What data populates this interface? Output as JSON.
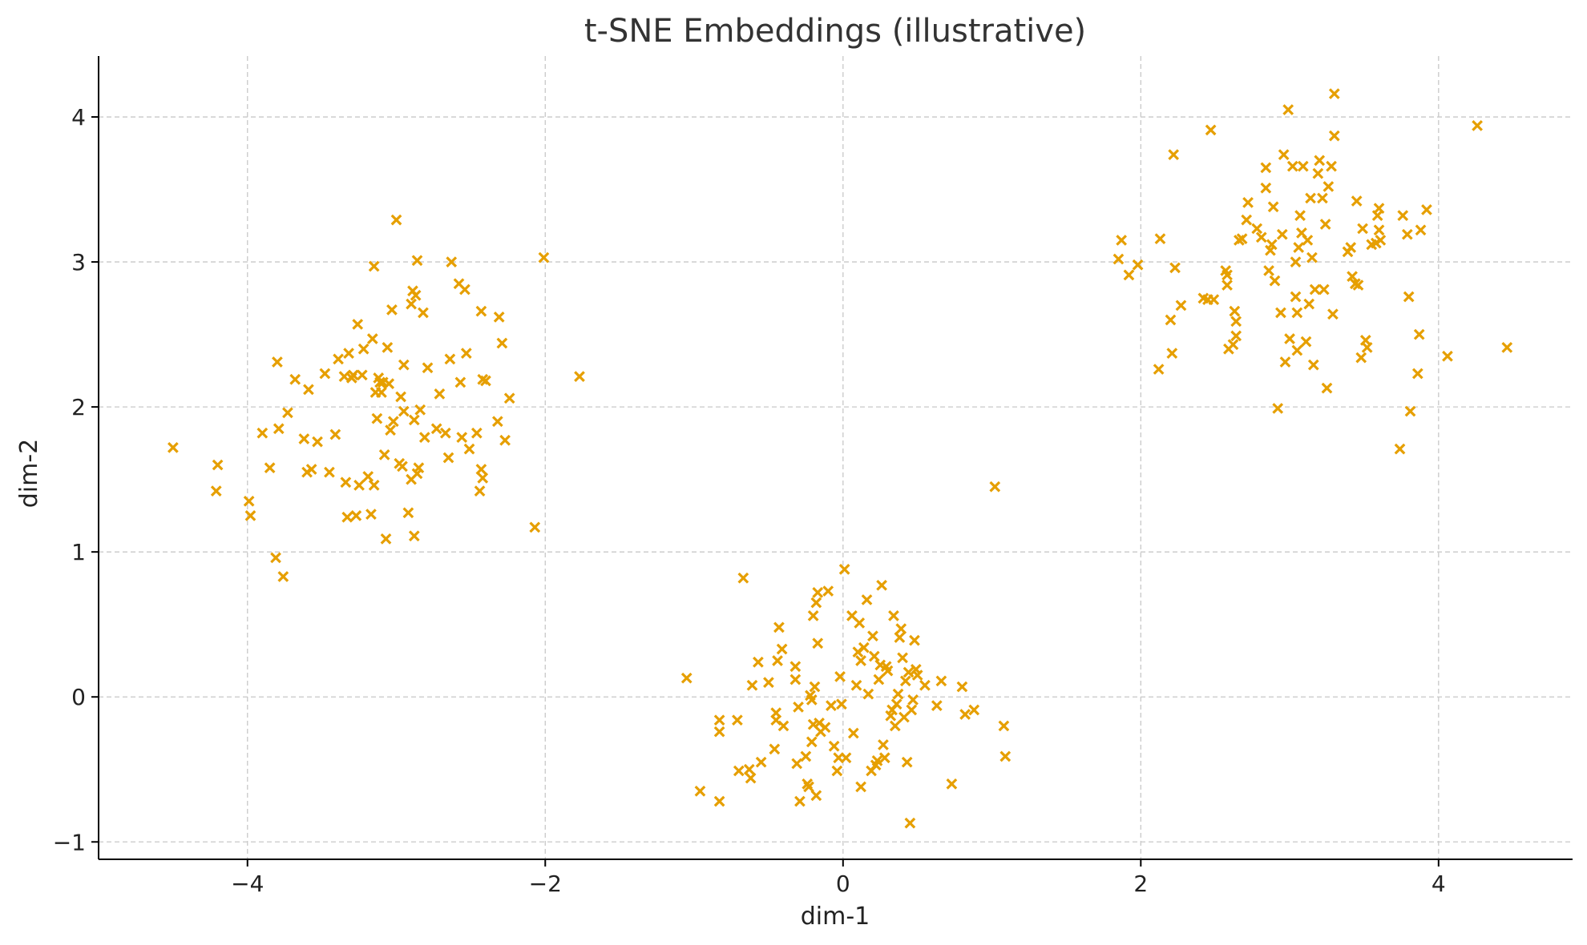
{
  "chart_data": {
    "type": "scatter",
    "title": "t-SNE Embeddings (illustrative)",
    "xlabel": "dim-1",
    "ylabel": "dim-2",
    "xlim": [
      -5.0,
      4.9
    ],
    "ylim": [
      -1.12,
      4.42
    ],
    "xticks": [
      -4,
      -2,
      0,
      2,
      4
    ],
    "yticks": [
      -1,
      0,
      1,
      2,
      3,
      4
    ],
    "grid": true,
    "marker": "x",
    "color": "#E69F00",
    "series": [
      {
        "points": [
          [
            -4.5,
            1.72
          ],
          [
            -4.2,
            1.6
          ],
          [
            -4.21,
            1.42
          ],
          [
            -3.99,
            1.35
          ],
          [
            -3.98,
            1.25
          ],
          [
            -3.9,
            1.82
          ],
          [
            -3.85,
            1.58
          ],
          [
            -3.81,
            0.96
          ],
          [
            -3.76,
            0.83
          ],
          [
            -3.8,
            2.31
          ],
          [
            -3.79,
            1.85
          ],
          [
            -3.73,
            1.96
          ],
          [
            -3.68,
            2.19
          ],
          [
            -3.62,
            1.78
          ],
          [
            -3.6,
            1.55
          ],
          [
            -3.59,
            2.12
          ],
          [
            -3.57,
            1.57
          ],
          [
            -3.53,
            1.76
          ],
          [
            -3.48,
            2.23
          ],
          [
            -3.45,
            1.55
          ],
          [
            -3.41,
            1.81
          ],
          [
            -3.39,
            2.33
          ],
          [
            -3.35,
            2.21
          ],
          [
            -3.34,
            1.48
          ],
          [
            -3.33,
            1.24
          ],
          [
            -3.32,
            2.37
          ],
          [
            -3.3,
            2.2
          ],
          [
            -3.29,
            2.22
          ],
          [
            -3.27,
            1.25
          ],
          [
            -3.26,
            2.57
          ],
          [
            -3.25,
            1.46
          ],
          [
            -3.23,
            2.22
          ],
          [
            -3.22,
            2.4
          ],
          [
            -3.19,
            1.52
          ],
          [
            -3.17,
            1.26
          ],
          [
            -3.16,
            2.47
          ],
          [
            -3.15,
            2.97
          ],
          [
            -3.15,
            1.46
          ],
          [
            -3.14,
            2.1
          ],
          [
            -3.13,
            1.92
          ],
          [
            -3.12,
            2.2
          ],
          [
            -3.11,
            2.17
          ],
          [
            -3.1,
            2.1
          ],
          [
            -3.09,
            2.17
          ],
          [
            -3.08,
            1.67
          ],
          [
            -3.07,
            1.09
          ],
          [
            -3.06,
            2.41
          ],
          [
            -3.05,
            2.16
          ],
          [
            -3.04,
            1.84
          ],
          [
            -3.03,
            2.67
          ],
          [
            -3.02,
            1.9
          ],
          [
            -3.0,
            3.29
          ],
          [
            -2.98,
            1.61
          ],
          [
            -2.97,
            2.07
          ],
          [
            -2.96,
            1.59
          ],
          [
            -2.95,
            2.29
          ],
          [
            -2.95,
            1.97
          ],
          [
            -2.92,
            1.27
          ],
          [
            -2.9,
            2.71
          ],
          [
            -2.9,
            1.5
          ],
          [
            -2.89,
            2.8
          ],
          [
            -2.88,
            1.11
          ],
          [
            -2.88,
            1.91
          ],
          [
            -2.87,
            2.77
          ],
          [
            -2.86,
            1.54
          ],
          [
            -2.86,
            3.01
          ],
          [
            -2.85,
            1.58
          ],
          [
            -2.84,
            1.98
          ],
          [
            -2.82,
            2.65
          ],
          [
            -2.81,
            1.79
          ],
          [
            -2.79,
            2.27
          ],
          [
            -2.73,
            1.85
          ],
          [
            -2.71,
            2.09
          ],
          [
            -2.67,
            1.82
          ],
          [
            -2.65,
            1.65
          ],
          [
            -2.64,
            2.33
          ],
          [
            -2.63,
            3.0
          ],
          [
            -2.58,
            2.85
          ],
          [
            -2.57,
            2.17
          ],
          [
            -2.56,
            1.79
          ],
          [
            -2.54,
            2.81
          ],
          [
            -2.53,
            2.37
          ],
          [
            -2.51,
            1.71
          ],
          [
            -2.46,
            1.82
          ],
          [
            -2.44,
            1.42
          ],
          [
            -2.43,
            1.57
          ],
          [
            -2.43,
            2.66
          ],
          [
            -2.42,
            2.19
          ],
          [
            -2.42,
            1.51
          ],
          [
            -2.4,
            2.18
          ],
          [
            -2.32,
            1.9
          ],
          [
            -2.31,
            2.62
          ],
          [
            -2.29,
            2.44
          ],
          [
            -2.27,
            1.77
          ],
          [
            -2.24,
            2.06
          ],
          [
            -2.07,
            1.17
          ],
          [
            -2.01,
            3.03
          ],
          [
            -1.77,
            2.21
          ]
        ]
      },
      {
        "points": [
          [
            -1.05,
            0.13
          ],
          [
            -0.96,
            -0.65
          ],
          [
            -0.83,
            -0.16
          ],
          [
            -0.83,
            -0.24
          ],
          [
            -0.83,
            -0.72
          ],
          [
            -0.71,
            -0.16
          ],
          [
            -0.7,
            -0.51
          ],
          [
            -0.67,
            0.82
          ],
          [
            -0.63,
            -0.5
          ],
          [
            -0.62,
            -0.56
          ],
          [
            -0.61,
            0.08
          ],
          [
            -0.57,
            0.24
          ],
          [
            -0.55,
            -0.45
          ],
          [
            -0.5,
            0.1
          ],
          [
            -0.46,
            -0.36
          ],
          [
            -0.45,
            -0.11
          ],
          [
            -0.45,
            -0.16
          ],
          [
            -0.44,
            0.25
          ],
          [
            -0.43,
            0.48
          ],
          [
            -0.41,
            0.33
          ],
          [
            -0.4,
            -0.2
          ],
          [
            -0.32,
            0.21
          ],
          [
            -0.32,
            0.12
          ],
          [
            -0.31,
            -0.46
          ],
          [
            -0.3,
            -0.07
          ],
          [
            -0.29,
            -0.72
          ],
          [
            -0.25,
            -0.41
          ],
          [
            -0.24,
            -0.6
          ],
          [
            -0.23,
            -0.62
          ],
          [
            -0.22,
            0.01
          ],
          [
            -0.21,
            -0.31
          ],
          [
            -0.21,
            -0.02
          ],
          [
            -0.2,
            0.56
          ],
          [
            -0.2,
            -0.19
          ],
          [
            -0.19,
            0.07
          ],
          [
            -0.18,
            0.65
          ],
          [
            -0.18,
            -0.68
          ],
          [
            -0.17,
            0.37
          ],
          [
            -0.17,
            0.72
          ],
          [
            -0.16,
            -0.18
          ],
          [
            -0.15,
            -0.24
          ],
          [
            -0.12,
            -0.21
          ],
          [
            -0.1,
            0.73
          ],
          [
            -0.08,
            -0.06
          ],
          [
            -0.06,
            -0.34
          ],
          [
            -0.04,
            -0.51
          ],
          [
            -0.03,
            -0.42
          ],
          [
            -0.02,
            0.14
          ],
          [
            -0.01,
            -0.05
          ],
          [
            0.01,
            0.88
          ],
          [
            0.02,
            -0.42
          ],
          [
            0.06,
            0.56
          ],
          [
            0.07,
            -0.25
          ],
          [
            0.09,
            0.08
          ],
          [
            0.1,
            0.31
          ],
          [
            0.11,
            0.51
          ],
          [
            0.12,
            -0.62
          ],
          [
            0.12,
            0.25
          ],
          [
            0.14,
            0.34
          ],
          [
            0.16,
            0.67
          ],
          [
            0.17,
            0.02
          ],
          [
            0.19,
            -0.51
          ],
          [
            0.2,
            0.42
          ],
          [
            0.21,
            0.28
          ],
          [
            0.22,
            -0.47
          ],
          [
            0.23,
            -0.44
          ],
          [
            0.24,
            0.12
          ],
          [
            0.25,
            0.22
          ],
          [
            0.26,
            0.77
          ],
          [
            0.27,
            -0.33
          ],
          [
            0.28,
            -0.42
          ],
          [
            0.29,
            0.21
          ],
          [
            0.3,
            0.18
          ],
          [
            0.32,
            -0.13
          ],
          [
            0.33,
            -0.09
          ],
          [
            0.34,
            0.56
          ],
          [
            0.35,
            -0.2
          ],
          [
            0.36,
            -0.05
          ],
          [
            0.37,
            0.02
          ],
          [
            0.38,
            0.41
          ],
          [
            0.39,
            0.47
          ],
          [
            0.4,
            0.27
          ],
          [
            0.41,
            -0.14
          ],
          [
            0.42,
            0.11
          ],
          [
            0.43,
            -0.45
          ],
          [
            0.44,
            0.17
          ],
          [
            0.45,
            -0.87
          ],
          [
            0.46,
            -0.09
          ],
          [
            0.47,
            -0.02
          ],
          [
            0.48,
            0.39
          ],
          [
            0.49,
            0.19
          ],
          [
            0.5,
            0.15
          ],
          [
            0.55,
            0.08
          ],
          [
            0.63,
            -0.06
          ],
          [
            0.66,
            0.11
          ],
          [
            0.73,
            -0.6
          ],
          [
            0.8,
            0.07
          ],
          [
            0.82,
            -0.12
          ],
          [
            0.88,
            -0.09
          ],
          [
            1.02,
            1.45
          ],
          [
            1.08,
            -0.2
          ],
          [
            1.09,
            -0.41
          ]
        ]
      },
      {
        "points": [
          [
            1.85,
            3.02
          ],
          [
            1.87,
            3.15
          ],
          [
            1.92,
            2.91
          ],
          [
            1.98,
            2.98
          ],
          [
            2.12,
            2.26
          ],
          [
            2.13,
            3.16
          ],
          [
            2.2,
            2.6
          ],
          [
            2.21,
            2.37
          ],
          [
            2.22,
            3.74
          ],
          [
            2.23,
            2.96
          ],
          [
            2.27,
            2.7
          ],
          [
            2.42,
            2.75
          ],
          [
            2.45,
            2.74
          ],
          [
            2.47,
            3.91
          ],
          [
            2.49,
            2.74
          ],
          [
            2.57,
            2.94
          ],
          [
            2.58,
            2.91
          ],
          [
            2.58,
            2.84
          ],
          [
            2.59,
            2.4
          ],
          [
            2.62,
            2.43
          ],
          [
            2.63,
            2.66
          ],
          [
            2.64,
            2.49
          ],
          [
            2.64,
            2.59
          ],
          [
            2.66,
            3.15
          ],
          [
            2.68,
            3.16
          ],
          [
            2.71,
            3.29
          ],
          [
            2.72,
            3.41
          ],
          [
            2.78,
            3.23
          ],
          [
            2.81,
            3.17
          ],
          [
            2.84,
            3.51
          ],
          [
            2.84,
            3.65
          ],
          [
            2.86,
            2.94
          ],
          [
            2.87,
            3.08
          ],
          [
            2.88,
            3.12
          ],
          [
            2.89,
            3.38
          ],
          [
            2.9,
            2.87
          ],
          [
            2.92,
            1.99
          ],
          [
            2.94,
            2.65
          ],
          [
            2.95,
            3.19
          ],
          [
            2.96,
            3.74
          ],
          [
            2.97,
            2.31
          ],
          [
            2.99,
            4.05
          ],
          [
            3.0,
            2.47
          ],
          [
            3.02,
            3.66
          ],
          [
            3.04,
            2.76
          ],
          [
            3.04,
            3.0
          ],
          [
            3.05,
            2.39
          ],
          [
            3.05,
            2.65
          ],
          [
            3.06,
            3.1
          ],
          [
            3.07,
            3.32
          ],
          [
            3.08,
            3.2
          ],
          [
            3.09,
            3.66
          ],
          [
            3.11,
            2.45
          ],
          [
            3.12,
            3.15
          ],
          [
            3.13,
            2.71
          ],
          [
            3.14,
            3.44
          ],
          [
            3.15,
            3.03
          ],
          [
            3.16,
            2.29
          ],
          [
            3.17,
            2.81
          ],
          [
            3.19,
            3.61
          ],
          [
            3.2,
            3.7
          ],
          [
            3.22,
            3.44
          ],
          [
            3.23,
            2.81
          ],
          [
            3.24,
            3.26
          ],
          [
            3.25,
            2.13
          ],
          [
            3.26,
            3.52
          ],
          [
            3.28,
            3.66
          ],
          [
            3.29,
            2.64
          ],
          [
            3.3,
            3.87
          ],
          [
            3.3,
            4.16
          ],
          [
            3.39,
            3.07
          ],
          [
            3.41,
            3.1
          ],
          [
            3.42,
            2.9
          ],
          [
            3.44,
            2.85
          ],
          [
            3.45,
            3.42
          ],
          [
            3.46,
            2.84
          ],
          [
            3.48,
            2.34
          ],
          [
            3.49,
            3.23
          ],
          [
            3.51,
            2.46
          ],
          [
            3.52,
            2.41
          ],
          [
            3.55,
            3.12
          ],
          [
            3.58,
            3.13
          ],
          [
            3.59,
            3.32
          ],
          [
            3.6,
            3.22
          ],
          [
            3.6,
            3.37
          ],
          [
            3.61,
            3.15
          ],
          [
            3.74,
            1.71
          ],
          [
            3.76,
            3.32
          ],
          [
            3.79,
            3.19
          ],
          [
            3.8,
            2.76
          ],
          [
            3.81,
            1.97
          ],
          [
            3.86,
            2.23
          ],
          [
            3.87,
            2.5
          ],
          [
            3.88,
            3.22
          ],
          [
            3.92,
            3.36
          ],
          [
            4.06,
            2.35
          ],
          [
            4.26,
            3.94
          ],
          [
            4.46,
            2.41
          ]
        ]
      }
    ]
  }
}
